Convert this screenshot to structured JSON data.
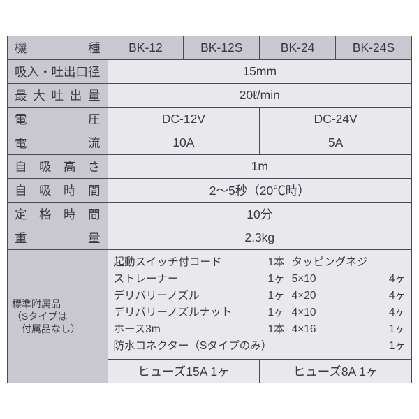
{
  "header": {
    "model": "機　　種",
    "models": [
      "BK-12",
      "BK-12S",
      "BK-24",
      "BK-24S"
    ]
  },
  "rows": {
    "port": {
      "label": "吸入・吐出口径",
      "value": "15mm"
    },
    "flow": {
      "label": "最大吐出量",
      "value": "20ℓ/min"
    },
    "voltage": {
      "label": "電　　圧",
      "v12": "DC-12V",
      "v24": "DC-24V"
    },
    "current": {
      "label": "電　　流",
      "a12": "10A",
      "a24": "5A"
    },
    "suctionH": {
      "label": "自吸高さ",
      "value": "1m"
    },
    "suctionT": {
      "label": "自吸時間",
      "value": "2～5秒（20℃時）"
    },
    "rated": {
      "label": "定格時間",
      "value": "10分"
    },
    "weight": {
      "label": "重　　量",
      "value": "2.3kg"
    }
  },
  "accessories": {
    "label": "標準附属品",
    "sublabel": "（Sタイプは\n　付属品なし）",
    "left": [
      {
        "n": "起動スイッチ付コード",
        "q": "1本"
      },
      {
        "n": "ストレーナー",
        "q": "1ヶ"
      },
      {
        "n": "デリバリーノズル",
        "q": "1ヶ"
      },
      {
        "n": "デリバリーノズルナット",
        "q": "1ヶ"
      },
      {
        "n": "ホース3m",
        "q": "1本"
      }
    ],
    "right": [
      {
        "n": "タッピングネジ",
        "q": ""
      },
      {
        "n": "5×10",
        "q": "4ヶ"
      },
      {
        "n": "4×20",
        "q": "4ヶ"
      },
      {
        "n": "4×10",
        "q": "4ヶ"
      },
      {
        "n": "4×16",
        "q": "1ヶ"
      }
    ],
    "full": {
      "n": "防水コネクター（Sタイプのみ）",
      "q": "1ヶ"
    },
    "fuse": {
      "f12": "ヒューズ15A 1ヶ",
      "f24": "ヒューズ8A 1ヶ"
    }
  },
  "style": {
    "header_bg": "#c9c7d0",
    "body_bg": "#e9e8ed",
    "border": "#4a4a56",
    "text": "#3a3a44",
    "font_size_pt": 13,
    "acc_font_size_pt": 11.5,
    "col_widths_pct": [
      23,
      19.25,
      19.25,
      19.25,
      19.25
    ]
  }
}
